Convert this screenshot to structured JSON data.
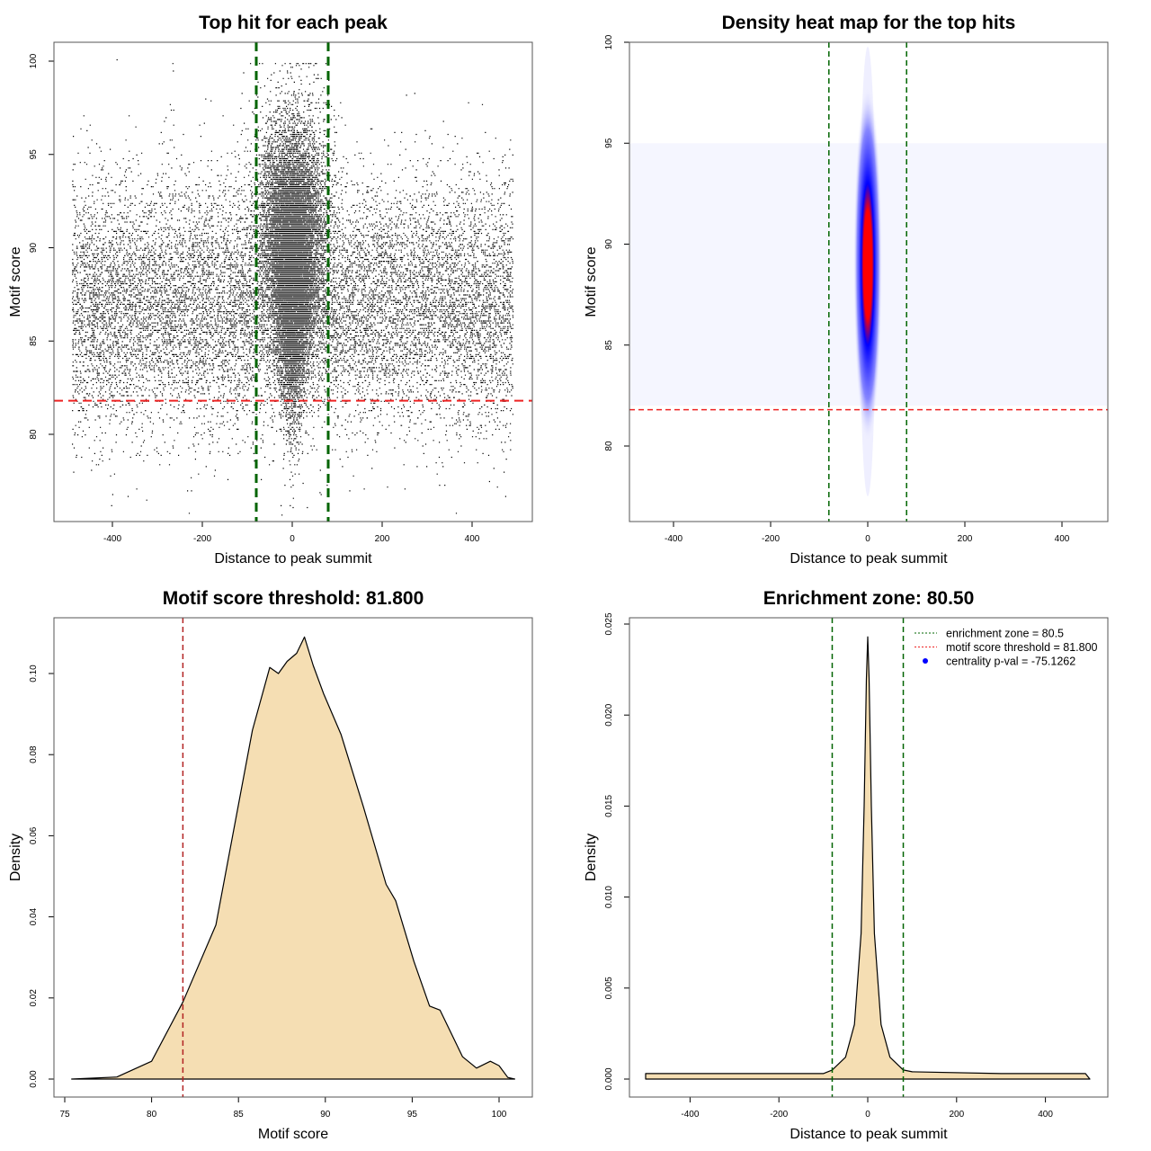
{
  "chart_data": [
    {
      "type": "scatter",
      "title": "Top hit for each peak",
      "xlabel": "Distance to peak summit",
      "ylabel": "Motif score",
      "xlim": [
        -500,
        500
      ],
      "ylim": [
        76,
        101
      ],
      "xticks": [
        -400,
        -200,
        0,
        200,
        400
      ],
      "yticks": [
        80,
        85,
        90,
        95,
        100
      ],
      "vlines": [
        -80,
        80
      ],
      "hline": 81.8,
      "points_spec": {
        "background": {
          "n": 14000,
          "x_range": [
            -490,
            490
          ],
          "y_mean": 87,
          "y_sd": 3.3
        },
        "central": {
          "n": 14000,
          "x_sd": 25,
          "y_mean": 89.5,
          "y_sd": 3.5
        }
      }
    },
    {
      "type": "heatmap",
      "title": "Density heat map for the top hits",
      "xlabel": "Distance to peak summit",
      "ylabel": "Motif score",
      "xlim": [
        -500,
        500
      ],
      "ylim": [
        76,
        100
      ],
      "xticks": [
        -400,
        -200,
        0,
        200,
        400
      ],
      "yticks": [
        80,
        85,
        90,
        95,
        100
      ],
      "vlines": [
        -80,
        80
      ],
      "hline": 81.8,
      "peak_center": {
        "x": 0,
        "y": 89
      }
    },
    {
      "type": "area",
      "title": "Motif score threshold: 81.800",
      "xlabel": "Motif score",
      "ylabel": "Density",
      "xlim": [
        75,
        101
      ],
      "ylim": [
        0,
        0.11
      ],
      "xticks": [
        75,
        80,
        85,
        90,
        95,
        100
      ],
      "yticks": [
        "0.00",
        "0.02",
        "0.04",
        "0.06",
        "0.08",
        "0.10"
      ],
      "vline": 81.8,
      "x": [
        75.4,
        78,
        80,
        81.8,
        83.7,
        85.8,
        86.8,
        87.3,
        87.8,
        88.35,
        88.8,
        89.3,
        89.9,
        90.9,
        92.2,
        93.5,
        94.05,
        95.1,
        96,
        96.6,
        97.9,
        98.7,
        99.5,
        100,
        100.5,
        100.9
      ],
      "y": [
        0,
        0.0005,
        0.0044,
        0.019,
        0.038,
        0.086,
        0.1015,
        0.1,
        0.103,
        0.105,
        0.109,
        0.102,
        0.095,
        0.085,
        0.067,
        0.048,
        0.044,
        0.029,
        0.018,
        0.017,
        0.0055,
        0.0027,
        0.0044,
        0.0033,
        0.0004,
        0
      ]
    },
    {
      "type": "area",
      "title": "Enrichment zone: 80.50",
      "xlabel": "Distance to peak summit",
      "ylabel": "Density",
      "xlim": [
        -500,
        500
      ],
      "ylim": [
        0,
        0.025
      ],
      "xticks": [
        -400,
        -200,
        0,
        200,
        400
      ],
      "yticks": [
        "0.000",
        "0.005",
        "0.010",
        "0.015",
        "0.020",
        "0.025"
      ],
      "vlines": [
        -80,
        80
      ],
      "x": [
        -500,
        -300,
        -100,
        -80,
        -50,
        -30,
        -15,
        -8,
        -3,
        0,
        3,
        8,
        15,
        30,
        50,
        80,
        100,
        300,
        490,
        500
      ],
      "y": [
        0.0003,
        0.0003,
        0.0003,
        0.0005,
        0.0012,
        0.003,
        0.008,
        0.015,
        0.022,
        0.0243,
        0.022,
        0.015,
        0.008,
        0.003,
        0.0012,
        0.0005,
        0.0004,
        0.0003,
        0.0003,
        0
      ],
      "legend": [
        "enrichment zone = 80.5",
        "motif score threshold = 81.800",
        "centrality p-val = -75.1262"
      ]
    }
  ],
  "colors": {
    "green": "#006400",
    "red": "#ee2222",
    "fill": "#f5deb3",
    "blue": "#0000ff"
  }
}
